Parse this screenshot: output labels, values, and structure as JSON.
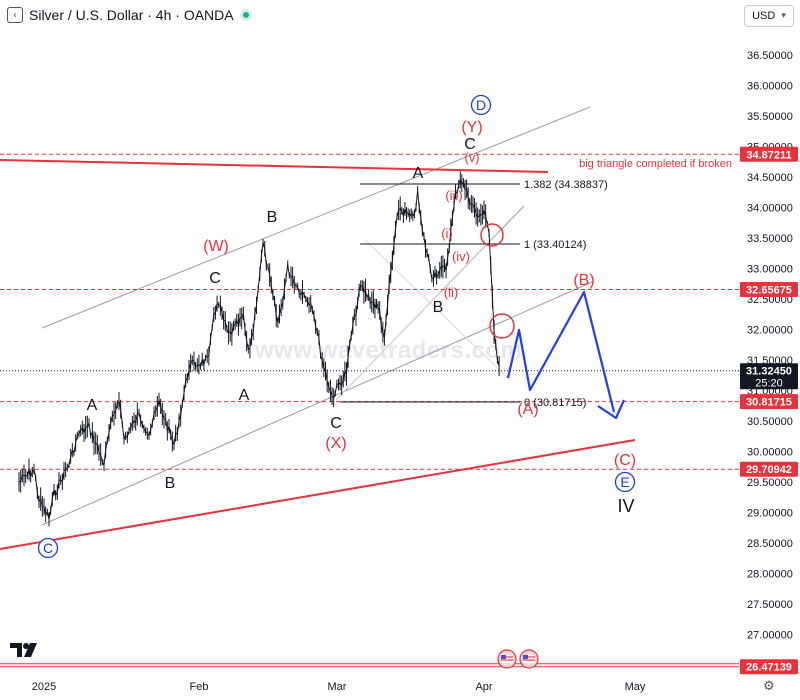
{
  "header": {
    "symbol_title": "Silver / U.S. Dollar · 4h · OANDA",
    "currency": "USD",
    "collapse_icon": "chevron-left-icon",
    "live_indicator": "market-open-dot-icon",
    "currency_chevron": "chevron-down-icon"
  },
  "watermark": "www.wavetraders.com",
  "colors": {
    "price_line": "#131722",
    "elliott_red": "#e8323c",
    "elliott_blue": "#1e3cdc",
    "projection_blue": "#1f3ff0",
    "channel_gray": "#9a9da4",
    "axis_text": "#131722"
  },
  "chart_data": {
    "type": "line",
    "instrument": "Silver / U.S. Dollar",
    "timeframe": "4h",
    "source": "OANDA",
    "x_ticks": [
      "2025",
      "Feb",
      "Mar",
      "Apr",
      "May"
    ],
    "y_ticks": [
      "36.50000",
      "36.00000",
      "35.50000",
      "35.00000",
      "34.50000",
      "34.00000",
      "33.50000",
      "33.00000",
      "32.50000",
      "32.00000",
      "31.50000",
      "31.00000",
      "30.50000",
      "30.00000",
      "29.50000",
      "29.00000",
      "28.50000",
      "28.00000",
      "27.50000",
      "27.00000",
      "26.50000"
    ],
    "ylim": [
      26.4,
      36.8
    ],
    "price_path": [
      {
        "x": "Dec 27",
        "y": 29.5
      },
      {
        "x": "Dec 30",
        "y": 29.7
      },
      {
        "x": "Dec 31",
        "y": 29.2
      },
      {
        "x": "Jan 2",
        "y": 28.9
      },
      {
        "x": "Jan 3",
        "y": 29.3
      },
      {
        "x": "Jan 6",
        "y": 29.8
      },
      {
        "x": "Jan 8",
        "y": 30.3
      },
      {
        "x": "Jan 10",
        "y": 30.4
      },
      {
        "x": "Jan 13",
        "y": 29.8
      },
      {
        "x": "Jan 14",
        "y": 30.3
      },
      {
        "x": "Jan 16",
        "y": 30.9
      },
      {
        "x": "Jan 17",
        "y": 30.2
      },
      {
        "x": "Jan 20",
        "y": 30.6
      },
      {
        "x": "Jan 22",
        "y": 30.3
      },
      {
        "x": "Jan 24",
        "y": 30.8
      },
      {
        "x": "Jan 27",
        "y": 30.1
      },
      {
        "x": "Jan 28",
        "y": 30.5
      },
      {
        "x": "Jan 30",
        "y": 31.4
      },
      {
        "x": "Feb 3",
        "y": 31.5
      },
      {
        "x": "Feb 4",
        "y": 32.3
      },
      {
        "x": "Feb 5",
        "y": 32.4
      },
      {
        "x": "Feb 7",
        "y": 31.9
      },
      {
        "x": "Feb 10",
        "y": 32.2
      },
      {
        "x": "Feb 11",
        "y": 31.6
      },
      {
        "x": "Feb 12",
        "y": 32.0
      },
      {
        "x": "Feb 14",
        "y": 33.4
      },
      {
        "x": "Feb 17",
        "y": 32.1
      },
      {
        "x": "Feb 18",
        "y": 32.5
      },
      {
        "x": "Feb 19",
        "y": 33.0
      },
      {
        "x": "Feb 21",
        "y": 32.7
      },
      {
        "x": "Feb 24",
        "y": 32.4
      },
      {
        "x": "Feb 26",
        "y": 31.5
      },
      {
        "x": "Feb 28",
        "y": 30.9
      },
      {
        "x": "Mar 3",
        "y": 31.3
      },
      {
        "x": "Mar 4",
        "y": 31.9
      },
      {
        "x": "Mar 6",
        "y": 32.7
      },
      {
        "x": "Mar 7",
        "y": 32.6
      },
      {
        "x": "Mar 10",
        "y": 32.3
      },
      {
        "x": "Mar 11",
        "y": 31.8
      },
      {
        "x": "Mar 12",
        "y": 32.7
      },
      {
        "x": "Mar 14",
        "y": 34.0
      },
      {
        "x": "Mar 17",
        "y": 33.8
      },
      {
        "x": "Mar 18",
        "y": 34.2
      },
      {
        "x": "Mar 19",
        "y": 33.6
      },
      {
        "x": "Mar 21",
        "y": 32.9
      },
      {
        "x": "Mar 24",
        "y": 33.0
      },
      {
        "x": "Mar 25",
        "y": 33.6
      },
      {
        "x": "Mar 26",
        "y": 34.2
      },
      {
        "x": "Mar 27",
        "y": 34.5
      },
      {
        "x": "Mar 28",
        "y": 34.3
      },
      {
        "x": "Mar 31",
        "y": 33.8
      },
      {
        "x": "Apr 1",
        "y": 34.0
      },
      {
        "x": "Apr 2",
        "y": 33.6
      },
      {
        "x": "Apr 3",
        "y": 31.9
      },
      {
        "x": "Apr 4",
        "y": 31.4
      }
    ],
    "horizontal_levels": [
      {
        "value": 34.87211,
        "label": "34.87211",
        "style": "dashed-red"
      },
      {
        "value": 32.65675,
        "label": "32.65675",
        "style": "dashed-red"
      },
      {
        "value": 31.3245,
        "label": "31.32450",
        "sublabel": "25:20",
        "style": "dotted-dark"
      },
      {
        "value": 30.81715,
        "label": "30.81715",
        "style": "dashed-red"
      },
      {
        "value": 29.70942,
        "label": "29.70942",
        "style": "dashed-red"
      },
      {
        "value": 26.47139,
        "label": "26.47139",
        "style": "solid-red"
      }
    ],
    "fib_levels": [
      {
        "ratio": "1.382",
        "value": 34.38837,
        "label": "1.382 (34.38837)"
      },
      {
        "ratio": "1",
        "value": 33.40124,
        "label": "1 (33.40124)"
      },
      {
        "ratio": "0",
        "value": 30.81715,
        "label": "0 (30.81715)"
      }
    ],
    "annotations": {
      "triangle_note": "big triangle completed if broken",
      "black_labels": [
        "A",
        "B",
        "C",
        "A",
        "B",
        "A",
        "C",
        "B",
        "C"
      ],
      "red_labels": [
        "(W)",
        "(X)",
        "(Y)",
        "(v)",
        "(iii)",
        "(iv)",
        "(ii)",
        "(i)",
        "(A)",
        "(B)",
        "(C)"
      ],
      "circled_blue": [
        "D",
        "C",
        "E"
      ],
      "roman": "IV"
    }
  }
}
